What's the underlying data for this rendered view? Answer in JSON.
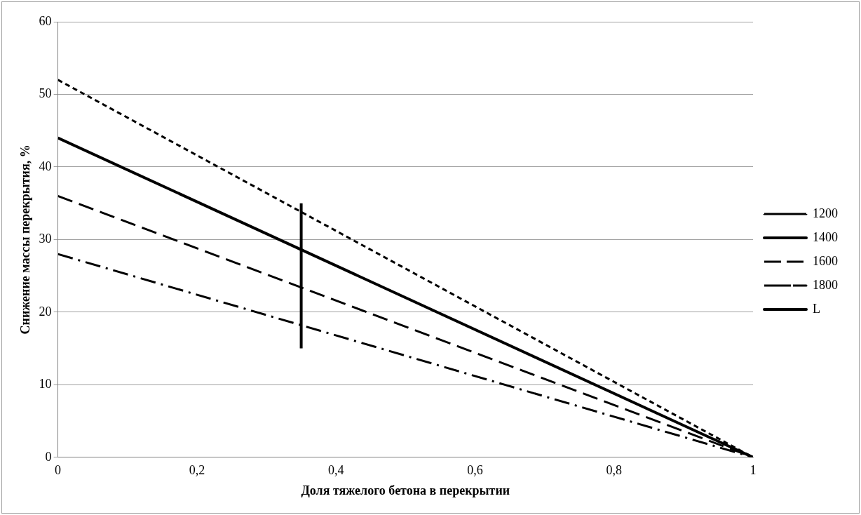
{
  "chart_data": {
    "type": "line",
    "xlabel": "Доля тяжелого бетона в перекрытии",
    "ylabel": "Снижение массы перекрытия, %",
    "xlim": [
      0,
      1
    ],
    "xticks": [
      0,
      {
        "value": 0.2,
        "label": "0,2"
      },
      {
        "value": 0.4,
        "label": "0,4"
      },
      {
        "value": 0.6,
        "label": "0,6"
      },
      {
        "value": 0.8,
        "label": "0,8"
      },
      1
    ],
    "ylim": [
      0,
      60
    ],
    "yticks": [
      0,
      10,
      20,
      30,
      40,
      50,
      60
    ],
    "grid": "y",
    "legend": "right",
    "marker": "none",
    "series": [
      {
        "name": "1200",
        "color": "#000000",
        "x": [
          0,
          1
        ],
        "values": [
          52,
          0
        ],
        "line_style": "dotted"
      },
      {
        "name": "1400",
        "color": "#000000",
        "x": [
          0,
          1
        ],
        "values": [
          44,
          0
        ],
        "line_style": "solid"
      },
      {
        "name": "1600",
        "color": "#000000",
        "x": [
          0,
          1
        ],
        "values": [
          36,
          0
        ],
        "line_style": "dashed"
      },
      {
        "name": "1800",
        "color": "#000000",
        "x": [
          0,
          1
        ],
        "values": [
          28,
          0
        ],
        "line_style": "dashdot"
      },
      {
        "name": "L",
        "color": "#000000",
        "x": [
          0.35,
          0.35
        ],
        "values": [
          15,
          35
        ],
        "line_style": "solid"
      }
    ]
  }
}
